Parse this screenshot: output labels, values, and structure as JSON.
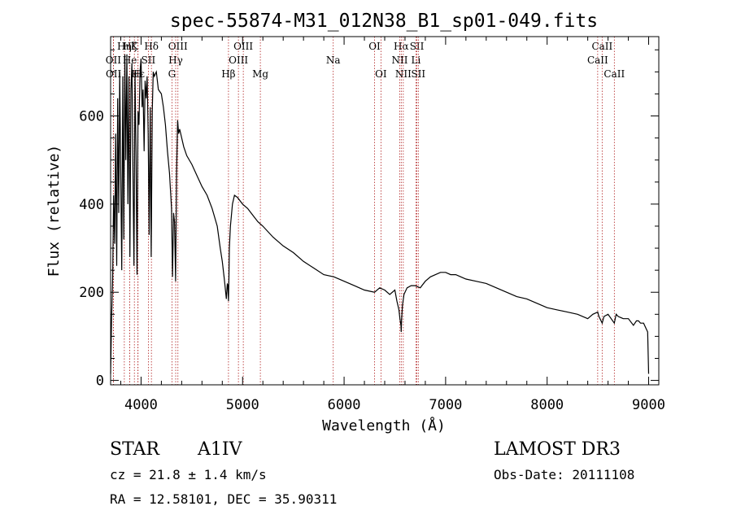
{
  "chart_data": {
    "type": "line",
    "title": "spec-55874-M31_012N38_B1_sp01-049.fits",
    "xlabel": "Wavelength (Å)",
    "ylabel": "Flux (relative)",
    "xlim": [
      3700,
      9100
    ],
    "ylim": [
      -10,
      780
    ],
    "x_ticks": [
      4000,
      5000,
      6000,
      7000,
      8000,
      9000
    ],
    "y_ticks": [
      0,
      200,
      400,
      600
    ],
    "grid": false,
    "series": [
      {
        "name": "spectrum",
        "x": [
          3700,
          3710,
          3720,
          3730,
          3740,
          3750,
          3760,
          3770,
          3780,
          3790,
          3800,
          3810,
          3820,
          3830,
          3840,
          3850,
          3860,
          3870,
          3880,
          3890,
          3900,
          3910,
          3920,
          3930,
          3940,
          3950,
          3960,
          3970,
          3980,
          3990,
          4000,
          4010,
          4020,
          4030,
          4040,
          4050,
          4060,
          4070,
          4080,
          4090,
          4100,
          4110,
          4120,
          4130,
          4150,
          4170,
          4200,
          4220,
          4240,
          4260,
          4280,
          4300,
          4310,
          4320,
          4330,
          4340,
          4350,
          4360,
          4370,
          4380,
          4400,
          4420,
          4450,
          4500,
          4550,
          4600,
          4650,
          4700,
          4750,
          4780,
          4800,
          4820,
          4840,
          4850,
          4855,
          4861,
          4865,
          4870,
          4880,
          4900,
          4920,
          4950,
          5000,
          5050,
          5100,
          5150,
          5200,
          5300,
          5400,
          5500,
          5600,
          5700,
          5800,
          5900,
          6000,
          6100,
          6200,
          6300,
          6350,
          6400,
          6450,
          6500,
          6520,
          6540,
          6550,
          6560,
          6563,
          6566,
          6575,
          6590,
          6620,
          6660,
          6700,
          6750,
          6800,
          6850,
          6900,
          6950,
          7000,
          7050,
          7100,
          7150,
          7200,
          7300,
          7400,
          7500,
          7600,
          7700,
          7800,
          7900,
          8000,
          8100,
          8200,
          8300,
          8400,
          8450,
          8498,
          8510,
          8542,
          8560,
          8600,
          8662,
          8680,
          8700,
          8750,
          8800,
          8850,
          8880,
          8900,
          8920,
          8950,
          8980,
          8990,
          9000
        ],
        "values": [
          15,
          140,
          230,
          420,
          310,
          560,
          260,
          640,
          380,
          700,
          460,
          250,
          690,
          320,
          740,
          500,
          740,
          400,
          690,
          280,
          660,
          720,
          470,
          260,
          700,
          520,
          240,
          610,
          580,
          700,
          730,
          620,
          660,
          520,
          680,
          640,
          690,
          560,
          330,
          620,
          280,
          610,
          700,
          690,
          700,
          660,
          650,
          620,
          580,
          520,
          470,
          390,
          235,
          380,
          360,
          225,
          470,
          590,
          560,
          570,
          550,
          530,
          510,
          490,
          465,
          440,
          420,
          390,
          350,
          300,
          270,
          230,
          185,
          220,
          215,
          180,
          225,
          300,
          350,
          400,
          420,
          415,
          400,
          390,
          375,
          360,
          350,
          325,
          305,
          290,
          270,
          255,
          240,
          235,
          225,
          215,
          205,
          200,
          210,
          205,
          195,
          205,
          180,
          160,
          140,
          125,
          110,
          135,
          170,
          195,
          210,
          215,
          215,
          210,
          225,
          235,
          240,
          245,
          245,
          240,
          240,
          235,
          230,
          225,
          220,
          210,
          200,
          190,
          185,
          175,
          165,
          160,
          155,
          150,
          140,
          150,
          155,
          145,
          130,
          145,
          150,
          130,
          150,
          145,
          140,
          140,
          125,
          135,
          135,
          130,
          130,
          115,
          110,
          15
        ]
      }
    ],
    "lines": [
      {
        "name": "Hη",
        "x": 3835,
        "row": 1
      },
      {
        "name": "OII",
        "x": 3727,
        "row": 2
      },
      {
        "name": "OII",
        "x": 3729,
        "row": 3
      },
      {
        "name": "Hζ",
        "x": 3889,
        "row": 1
      },
      {
        "name": "He",
        "x": 3889,
        "row": 2
      },
      {
        "name": "Hε",
        "x": 3970,
        "row": 3
      },
      {
        "name": "K",
        "x": 3934,
        "row": 1
      },
      {
        "name": "H",
        "x": 3969,
        "row": 3
      },
      {
        "name": "Hδ",
        "x": 4102,
        "row": 1
      },
      {
        "name": "SII",
        "x": 4072,
        "row": 2
      },
      {
        "name": "OIII",
        "x": 4363,
        "row": 1
      },
      {
        "name": "Hγ",
        "x": 4341,
        "row": 2
      },
      {
        "name": "G",
        "x": 4304,
        "row": 3
      },
      {
        "name": "Hβ",
        "x": 4861,
        "row": 3
      },
      {
        "name": "OIII",
        "x": 5007,
        "row": 1
      },
      {
        "name": "OIII",
        "x": 4959,
        "row": 2
      },
      {
        "name": "Mg",
        "x": 5175,
        "row": 3
      },
      {
        "name": "Na",
        "x": 5893,
        "row": 2
      },
      {
        "name": "OI",
        "x": 6300,
        "row": 1
      },
      {
        "name": "OI",
        "x": 6363,
        "row": 3
      },
      {
        "name": "Hα",
        "x": 6563,
        "row": 1
      },
      {
        "name": "NII",
        "x": 6548,
        "row": 2
      },
      {
        "name": "NII",
        "x": 6583,
        "row": 3
      },
      {
        "name": "SII",
        "x": 6717,
        "row": 1
      },
      {
        "name": "Li",
        "x": 6708,
        "row": 2
      },
      {
        "name": "SII",
        "x": 6731,
        "row": 3
      },
      {
        "name": "CaII",
        "x": 8542,
        "row": 1
      },
      {
        "name": "CaII",
        "x": 8498,
        "row": 2
      },
      {
        "name": "CaII",
        "x": 8662,
        "row": 3
      }
    ]
  },
  "info": {
    "class": "STAR",
    "subclass": "A1IV",
    "survey": "LAMOST DR3",
    "cz": "cz = 21.8 ± 1.4 km/s",
    "obs_date": "Obs-Date: 20111108",
    "coords": "RA =  12.58101, DEC =  35.90311"
  },
  "colors": {
    "spectrum": "#000000",
    "lines": "#b02020",
    "axes": "#000000"
  }
}
